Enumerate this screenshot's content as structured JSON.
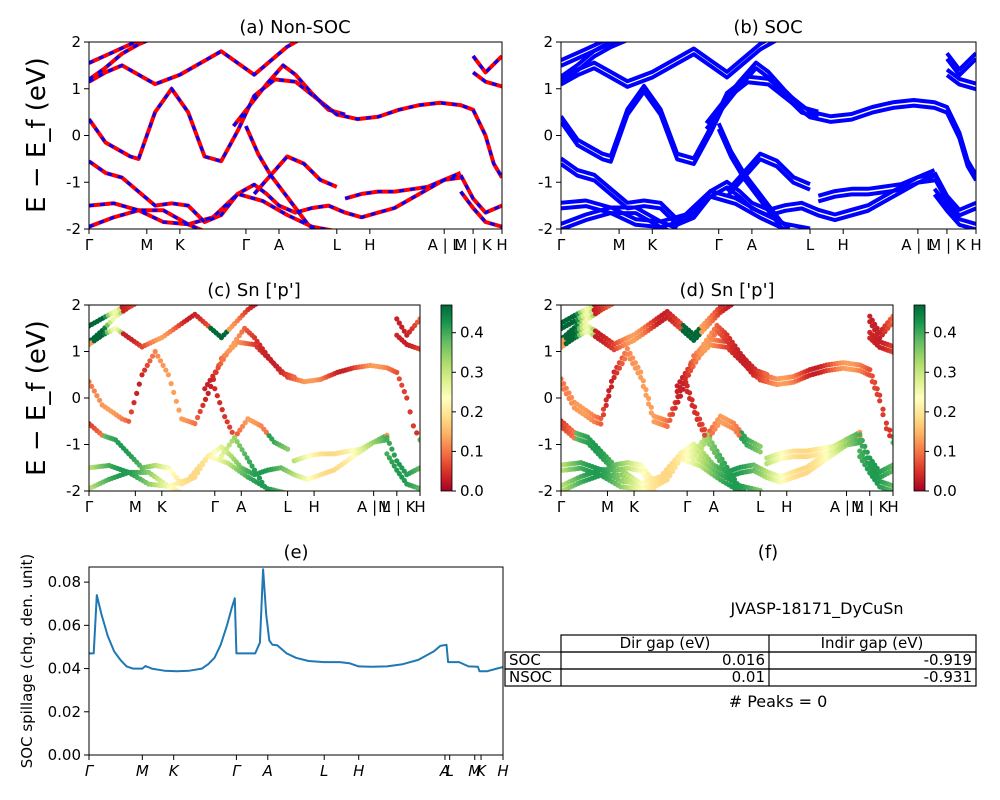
{
  "figure": {
    "ylabel_main": "E − E_f (eV)",
    "ylabel_spillage": "SOC spillage (chg. den. unit)"
  },
  "chart_data": [
    {
      "id": "a",
      "type": "line",
      "title": "(a) Non-SOC",
      "ylim": [
        -2,
        2
      ],
      "yticks": [
        -2,
        -1,
        0,
        1,
        2
      ],
      "xticks": [
        "Γ",
        "M",
        "K",
        "Γ",
        "A",
        "L",
        "H",
        "A | L",
        "M | K",
        "H"
      ],
      "series": [
        {
          "color": "#ff0000",
          "style": "solid",
          "bands": [
            [
              [
                0,
                0.35
              ],
              [
                4,
                -0.15
              ],
              [
                10,
                -0.45
              ],
              [
                12,
                -0.5
              ],
              [
                16,
                0.5
              ],
              [
                20,
                1.0
              ],
              [
                24,
                0.5
              ],
              [
                28,
                -0.45
              ],
              [
                32,
                -0.55
              ],
              [
                36,
                0.1
              ],
              [
                40,
                0.85
              ],
              [
                45,
                1.2
              ],
              [
                50,
                1.15
              ],
              [
                55,
                0.8
              ],
              [
                60,
                0.45
              ],
              [
                65,
                0.35
              ],
              [
                70,
                0.4
              ],
              [
                75,
                0.55
              ],
              [
                80,
                0.65
              ],
              [
                85,
                0.7
              ],
              [
                90,
                0.65
              ],
              [
                93,
                0.55
              ],
              [
                96,
                0.0
              ],
              [
                98,
                -0.6
              ],
              [
                100,
                -0.9
              ]
            ],
            [
              [
                0,
                1.2
              ],
              [
                4,
                1.45
              ],
              [
                8,
                1.75
              ],
              [
                12,
                1.95
              ],
              [
                16,
                2.1
              ]
            ],
            [
              [
                0,
                1.55
              ],
              [
                5,
                1.75
              ],
              [
                10,
                1.95
              ],
              [
                14,
                2.1
              ]
            ],
            [
              [
                0,
                1.15
              ],
              [
                4,
                1.35
              ],
              [
                8,
                1.5
              ],
              [
                12,
                1.3
              ],
              [
                16,
                1.1
              ],
              [
                22,
                1.3
              ],
              [
                28,
                1.6
              ],
              [
                32,
                1.8
              ],
              [
                36,
                1.55
              ],
              [
                40,
                1.3
              ],
              [
                44,
                1.6
              ],
              [
                48,
                1.9
              ],
              [
                52,
                2.1
              ]
            ],
            [
              [
                35,
                0.2
              ],
              [
                39,
                0.65
              ],
              [
                43,
                1.1
              ],
              [
                47,
                1.5
              ],
              [
                50,
                1.3
              ],
              [
                54,
                0.9
              ],
              [
                58,
                0.55
              ],
              [
                62,
                0.45
              ]
            ],
            [
              [
                0,
                -0.55
              ],
              [
                4,
                -0.8
              ],
              [
                8,
                -0.9
              ],
              [
                12,
                -1.2
              ],
              [
                16,
                -1.5
              ],
              [
                20,
                -1.45
              ],
              [
                24,
                -1.5
              ],
              [
                28,
                -1.85
              ],
              [
                32,
                -1.7
              ],
              [
                36,
                -1.25
              ],
              [
                40,
                -1.05
              ],
              [
                43,
                -1.25
              ],
              [
                46,
                -1.5
              ],
              [
                50,
                -1.65
              ],
              [
                54,
                -1.55
              ],
              [
                58,
                -1.5
              ],
              [
                62,
                -1.65
              ],
              [
                66,
                -1.75
              ],
              [
                70,
                -1.65
              ],
              [
                74,
                -1.55
              ],
              [
                78,
                -1.35
              ],
              [
                82,
                -1.15
              ],
              [
                86,
                -0.95
              ],
              [
                90,
                -0.9
              ]
            ],
            [
              [
                0,
                -1.5
              ],
              [
                6,
                -1.45
              ],
              [
                12,
                -1.6
              ],
              [
                18,
                -1.85
              ],
              [
                24,
                -1.9
              ],
              [
                30,
                -1.75
              ],
              [
                36,
                -1.25
              ],
              [
                42,
                -1.4
              ],
              [
                48,
                -1.7
              ],
              [
                54,
                -1.95
              ],
              [
                60,
                -2.05
              ]
            ],
            [
              [
                0,
                -1.95
              ],
              [
                6,
                -1.75
              ],
              [
                12,
                -1.6
              ],
              [
                18,
                -1.6
              ],
              [
                24,
                -1.9
              ],
              [
                28,
                -2.05
              ]
            ],
            [
              [
                40,
                -1.25
              ],
              [
                44,
                -0.85
              ],
              [
                48,
                -0.45
              ],
              [
                52,
                -0.6
              ],
              [
                56,
                -0.95
              ],
              [
                60,
                -1.1
              ]
            ],
            [
              [
                38,
                0.2
              ],
              [
                41,
                -0.4
              ],
              [
                44,
                -0.85
              ],
              [
                47,
                -1.2
              ],
              [
                50,
                -1.55
              ],
              [
                53,
                -1.9
              ],
              [
                55,
                -2.05
              ]
            ],
            [
              [
                62,
                -1.35
              ],
              [
                66,
                -1.25
              ],
              [
                70,
                -1.2
              ],
              [
                74,
                -1.2
              ],
              [
                78,
                -1.15
              ],
              [
                82,
                -1.1
              ],
              [
                86,
                -0.95
              ],
              [
                90,
                -0.8
              ]
            ],
            [
              [
                90,
                -0.85
              ],
              [
                93,
                -1.35
              ],
              [
                96,
                -1.65
              ],
              [
                100,
                -1.5
              ]
            ],
            [
              [
                90,
                -1.2
              ],
              [
                93,
                -1.55
              ],
              [
                96,
                -1.85
              ],
              [
                100,
                -1.95
              ]
            ],
            [
              [
                93,
                1.7
              ],
              [
                96,
                1.35
              ],
              [
                100,
                1.7
              ]
            ],
            [
              [
                93,
                1.35
              ],
              [
                96,
                1.15
              ],
              [
                100,
                1.05
              ]
            ]
          ]
        },
        {
          "color": "#0000ff",
          "style": "dashed",
          "bands": "same-as-red"
        }
      ]
    },
    {
      "id": "b",
      "type": "line",
      "title": "(b) SOC",
      "ylim": [
        -2,
        2
      ],
      "yticks": [
        -2,
        -1,
        0,
        1,
        2
      ],
      "xticks": [
        "Γ",
        "M",
        "K",
        "Γ",
        "A",
        "L",
        "H",
        "A | L",
        "M | K",
        "H"
      ],
      "series": [
        {
          "color": "#0000ff",
          "style": "solid",
          "bands": "split-of-a"
        }
      ]
    },
    {
      "id": "c",
      "type": "scatter",
      "title": "(c)  Sn ['p']",
      "ylim": [
        -2,
        2
      ],
      "yticks": [
        -2,
        -1,
        0,
        1,
        2
      ],
      "xticks": [
        "Γ",
        "M",
        "K",
        "Γ",
        "A",
        "L",
        "H",
        "A | L",
        "M | K",
        "H"
      ],
      "colorbar": {
        "cmap": "RdYlGn",
        "range": [
          0.0,
          0.47
        ],
        "ticks": [
          "0.0",
          "0.1",
          "0.2",
          "0.3",
          "0.4"
        ]
      }
    },
    {
      "id": "d",
      "type": "scatter",
      "title": "(d) Sn ['p']",
      "ylim": [
        -2,
        2
      ],
      "yticks": [
        -2,
        -1,
        0,
        1,
        2
      ],
      "xticks": [
        "Γ",
        "M",
        "K",
        "Γ",
        "A",
        "L",
        "H",
        "A | L",
        "M | K",
        "H"
      ],
      "colorbar": {
        "cmap": "RdYlGn",
        "range": [
          0.0,
          0.47
        ],
        "ticks": [
          "0.0",
          "0.1",
          "0.2",
          "0.3",
          "0.4"
        ]
      }
    },
    {
      "id": "e",
      "type": "line",
      "title": "(e)",
      "ylabel": "SOC spillage (chg. den. unit)",
      "ylim": [
        0.0,
        0.087
      ],
      "yticks": [
        "0.00",
        "0.02",
        "0.04",
        "0.06",
        "0.08"
      ],
      "xticks": [
        "Γ",
        "M",
        "K",
        "Γ",
        "A",
        "L",
        "H",
        "A",
        "L",
        "M",
        "K",
        "H"
      ],
      "series": [
        {
          "color": "#1f77b4",
          "points": [
            [
              0,
              0.047
            ],
            [
              1.5,
              0.047
            ],
            [
              2.5,
              0.074
            ],
            [
              4,
              0.065
            ],
            [
              6,
              0.055
            ],
            [
              8,
              0.048
            ],
            [
              10,
              0.044
            ],
            [
              12,
              0.041
            ],
            [
              14,
              0.04
            ],
            [
              17,
              0.04
            ],
            [
              18,
              0.0412
            ],
            [
              20,
              0.04
            ],
            [
              24,
              0.039
            ],
            [
              28,
              0.0388
            ],
            [
              32,
              0.039
            ],
            [
              36,
              0.04
            ],
            [
              38,
              0.042
            ],
            [
              40,
              0.045
            ],
            [
              42,
              0.051
            ],
            [
              44,
              0.06
            ],
            [
              45.5,
              0.068
            ],
            [
              46.5,
              0.0725
            ],
            [
              47,
              0.047
            ],
            [
              51,
              0.047
            ],
            [
              53,
              0.047
            ],
            [
              54.5,
              0.052
            ],
            [
              55.5,
              0.086
            ],
            [
              56.5,
              0.065
            ],
            [
              57.5,
              0.053
            ],
            [
              58.5,
              0.051
            ],
            [
              60,
              0.0508
            ],
            [
              63,
              0.047
            ],
            [
              66,
              0.045
            ],
            [
              70,
              0.0435
            ],
            [
              75,
              0.043
            ],
            [
              80,
              0.043
            ],
            [
              83,
              0.0425
            ],
            [
              86,
              0.041
            ],
            [
              90,
              0.0408
            ],
            [
              95,
              0.041
            ],
            [
              100,
              0.042
            ],
            [
              105,
              0.044
            ],
            [
              110,
              0.048
            ],
            [
              112,
              0.0505
            ],
            [
              114,
              0.051
            ],
            [
              114.5,
              0.043
            ],
            [
              118,
              0.043
            ],
            [
              121,
              0.041
            ],
            [
              124,
              0.0408
            ],
            [
              124.5,
              0.0388
            ],
            [
              127,
              0.0388
            ],
            [
              130,
              0.04
            ],
            [
              132,
              0.0407
            ]
          ]
        }
      ]
    },
    {
      "id": "f",
      "type": "table",
      "title": "(f)",
      "heading": "JVASP-18171_DyCuSn",
      "columns": [
        "",
        "Dir gap (eV)",
        "Indir gap (eV)"
      ],
      "rows": [
        [
          "SOC",
          "0.016",
          "-0.919"
        ],
        [
          "NSOC",
          "0.01",
          "-0.931"
        ]
      ],
      "footer": "# Peaks = 0"
    }
  ]
}
